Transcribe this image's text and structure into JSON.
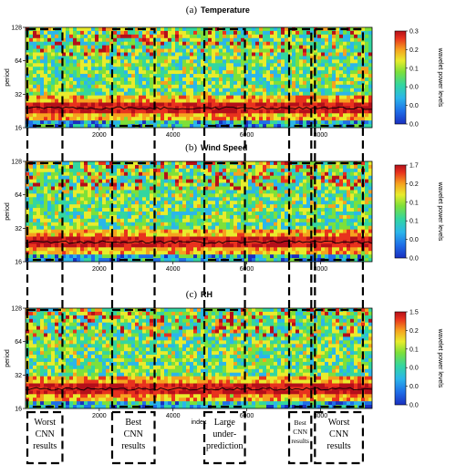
{
  "chart_data": [
    {
      "type": "heatmap",
      "panel": "(a)",
      "title": "Temperature",
      "ylabel": "period",
      "yticks": [
        16,
        32,
        64,
        128
      ],
      "xticks": [
        2000,
        4000,
        6000,
        8000
      ],
      "xlim": [
        0,
        9400
      ],
      "ylim": [
        16,
        128
      ],
      "y_scale": "log2",
      "colorbar": {
        "label": "wavelet power levels",
        "ticks": [
          "0.3",
          "0.2",
          "0.1",
          "0.0",
          "0.0",
          "0.0"
        ]
      },
      "dominant_band_period": 24
    },
    {
      "type": "heatmap",
      "panel": "(b)",
      "title": "Wind Speed",
      "ylabel": "period",
      "yticks": [
        16,
        32,
        64,
        128
      ],
      "xticks": [
        2000,
        4000,
        6000,
        8000
      ],
      "xlim": [
        0,
        9400
      ],
      "ylim": [
        16,
        128
      ],
      "y_scale": "log2",
      "colorbar": {
        "label": "wavelet power levels",
        "ticks": [
          "1.7",
          "0.2",
          "0.1",
          "0.1",
          "0.0",
          "0.0"
        ]
      },
      "dominant_band_period": 24
    },
    {
      "type": "heatmap",
      "panel": "(c)",
      "title": "RH",
      "ylabel": "period",
      "xlabel": "index",
      "yticks": [
        16,
        32,
        64,
        128
      ],
      "xticks": [
        2000,
        4000,
        6000,
        8000
      ],
      "xlim": [
        0,
        9400
      ],
      "ylim": [
        16,
        128
      ],
      "y_scale": "log2",
      "colorbar": {
        "label": "wavelet power levels",
        "ticks": [
          "1.5",
          "0.2",
          "0.1",
          "0.0",
          "0.0",
          "0.0"
        ]
      },
      "dominant_band_period": 24
    }
  ],
  "annotations": [
    {
      "lines": [
        "Worst",
        "CNN",
        "results"
      ],
      "x_range": [
        0,
        1050
      ]
    },
    {
      "lines": [
        "Best",
        "CNN",
        "results"
      ],
      "x_range": [
        2300,
        3550
      ]
    },
    {
      "lines": [
        "Large",
        "under-",
        "prediction"
      ],
      "x_range": [
        4800,
        6000
      ]
    },
    {
      "lines": [
        "Best",
        "CNN",
        "results"
      ],
      "x_range": [
        7100,
        7800
      ]
    },
    {
      "lines": [
        "Worst",
        "CNN",
        "results"
      ],
      "x_range": [
        7800,
        9200
      ]
    }
  ],
  "colormap": [
    "#1a2fbf",
    "#1f6fe8",
    "#2bb6ea",
    "#33d6a0",
    "#7de03a",
    "#e8ec2c",
    "#f6a11f",
    "#e8321e",
    "#b40f1a"
  ]
}
